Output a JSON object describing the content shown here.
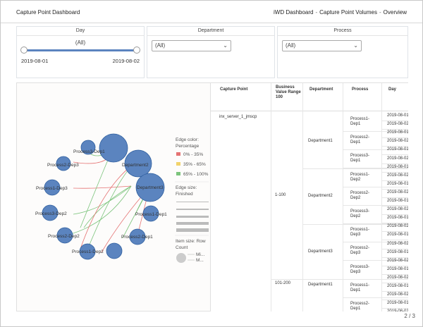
{
  "header": {
    "title": "Capture Point Dashboard",
    "breadcrumb": [
      "iWD Dashboard",
      "Capture Point Volumes",
      "Overview"
    ]
  },
  "filters": {
    "day": {
      "label": "Day",
      "value": "(All)",
      "min": "2019-08-01",
      "max": "2019-08-02"
    },
    "department": {
      "label": "Department",
      "value": "(All)"
    },
    "process": {
      "label": "Process",
      "value": "(All)"
    }
  },
  "chart_data": {
    "type": "network",
    "nodes": [
      {
        "name": "Process3-Dep1",
        "size": "medium"
      },
      {
        "name": "Department2",
        "size": "large"
      },
      {
        "name": "Department1",
        "size": "large"
      },
      {
        "name": "Process2-Dep3",
        "size": "small"
      },
      {
        "name": "Process1-Dep3",
        "size": "small"
      },
      {
        "name": "Process3-Dep2",
        "size": "small"
      },
      {
        "name": "Process2-Dep2",
        "size": "small"
      },
      {
        "name": "Process1-Dep2",
        "size": "small"
      },
      {
        "name": "Process2-Dep1",
        "size": "small"
      },
      {
        "name": "Process1-Dep1",
        "size": "small"
      },
      {
        "name": "Department3",
        "size": "medium"
      },
      {
        "name": "",
        "size": "largest"
      }
    ],
    "legend": {
      "edge_color_title": "Edge color:",
      "edge_color_subtitle": "Percentage",
      "edge_color_items": [
        {
          "label": "0% - 35%",
          "color": "#e57373"
        },
        {
          "label": "35% - 65%",
          "color": "#f2d36b"
        },
        {
          "label": "65% - 100%",
          "color": "#7cc47c"
        }
      ],
      "edge_size_title": "Edge size:",
      "edge_size_subtitle": "Finished",
      "item_size_title": "Item size: Row",
      "item_size_subtitle": "Count",
      "item_size_items": [
        "Mi...",
        "M..."
      ]
    }
  },
  "table": {
    "columns": [
      "Capture Point",
      "Business Value Range 100",
      "Department",
      "Process",
      "Day"
    ],
    "capture_point": "inx_server_1_jmscp",
    "ranges": [
      "1-100",
      "101-200"
    ],
    "departments": [
      "Department1",
      "Department2",
      "Department3",
      "Department1"
    ],
    "processes": [
      "Process1-Dep1",
      "Process2-Dep1",
      "Process3-Dep1",
      "Process1-Dep2",
      "Process2-Dep2",
      "Process3-Dep2",
      "Process1-Dep3",
      "Process2-Dep3",
      "Process3-Dep3",
      "Process1-Dep1",
      "Process2-Dep1"
    ],
    "day_values": [
      "2019-08-01",
      "2019-08-02"
    ]
  },
  "pager": "2 / 3"
}
